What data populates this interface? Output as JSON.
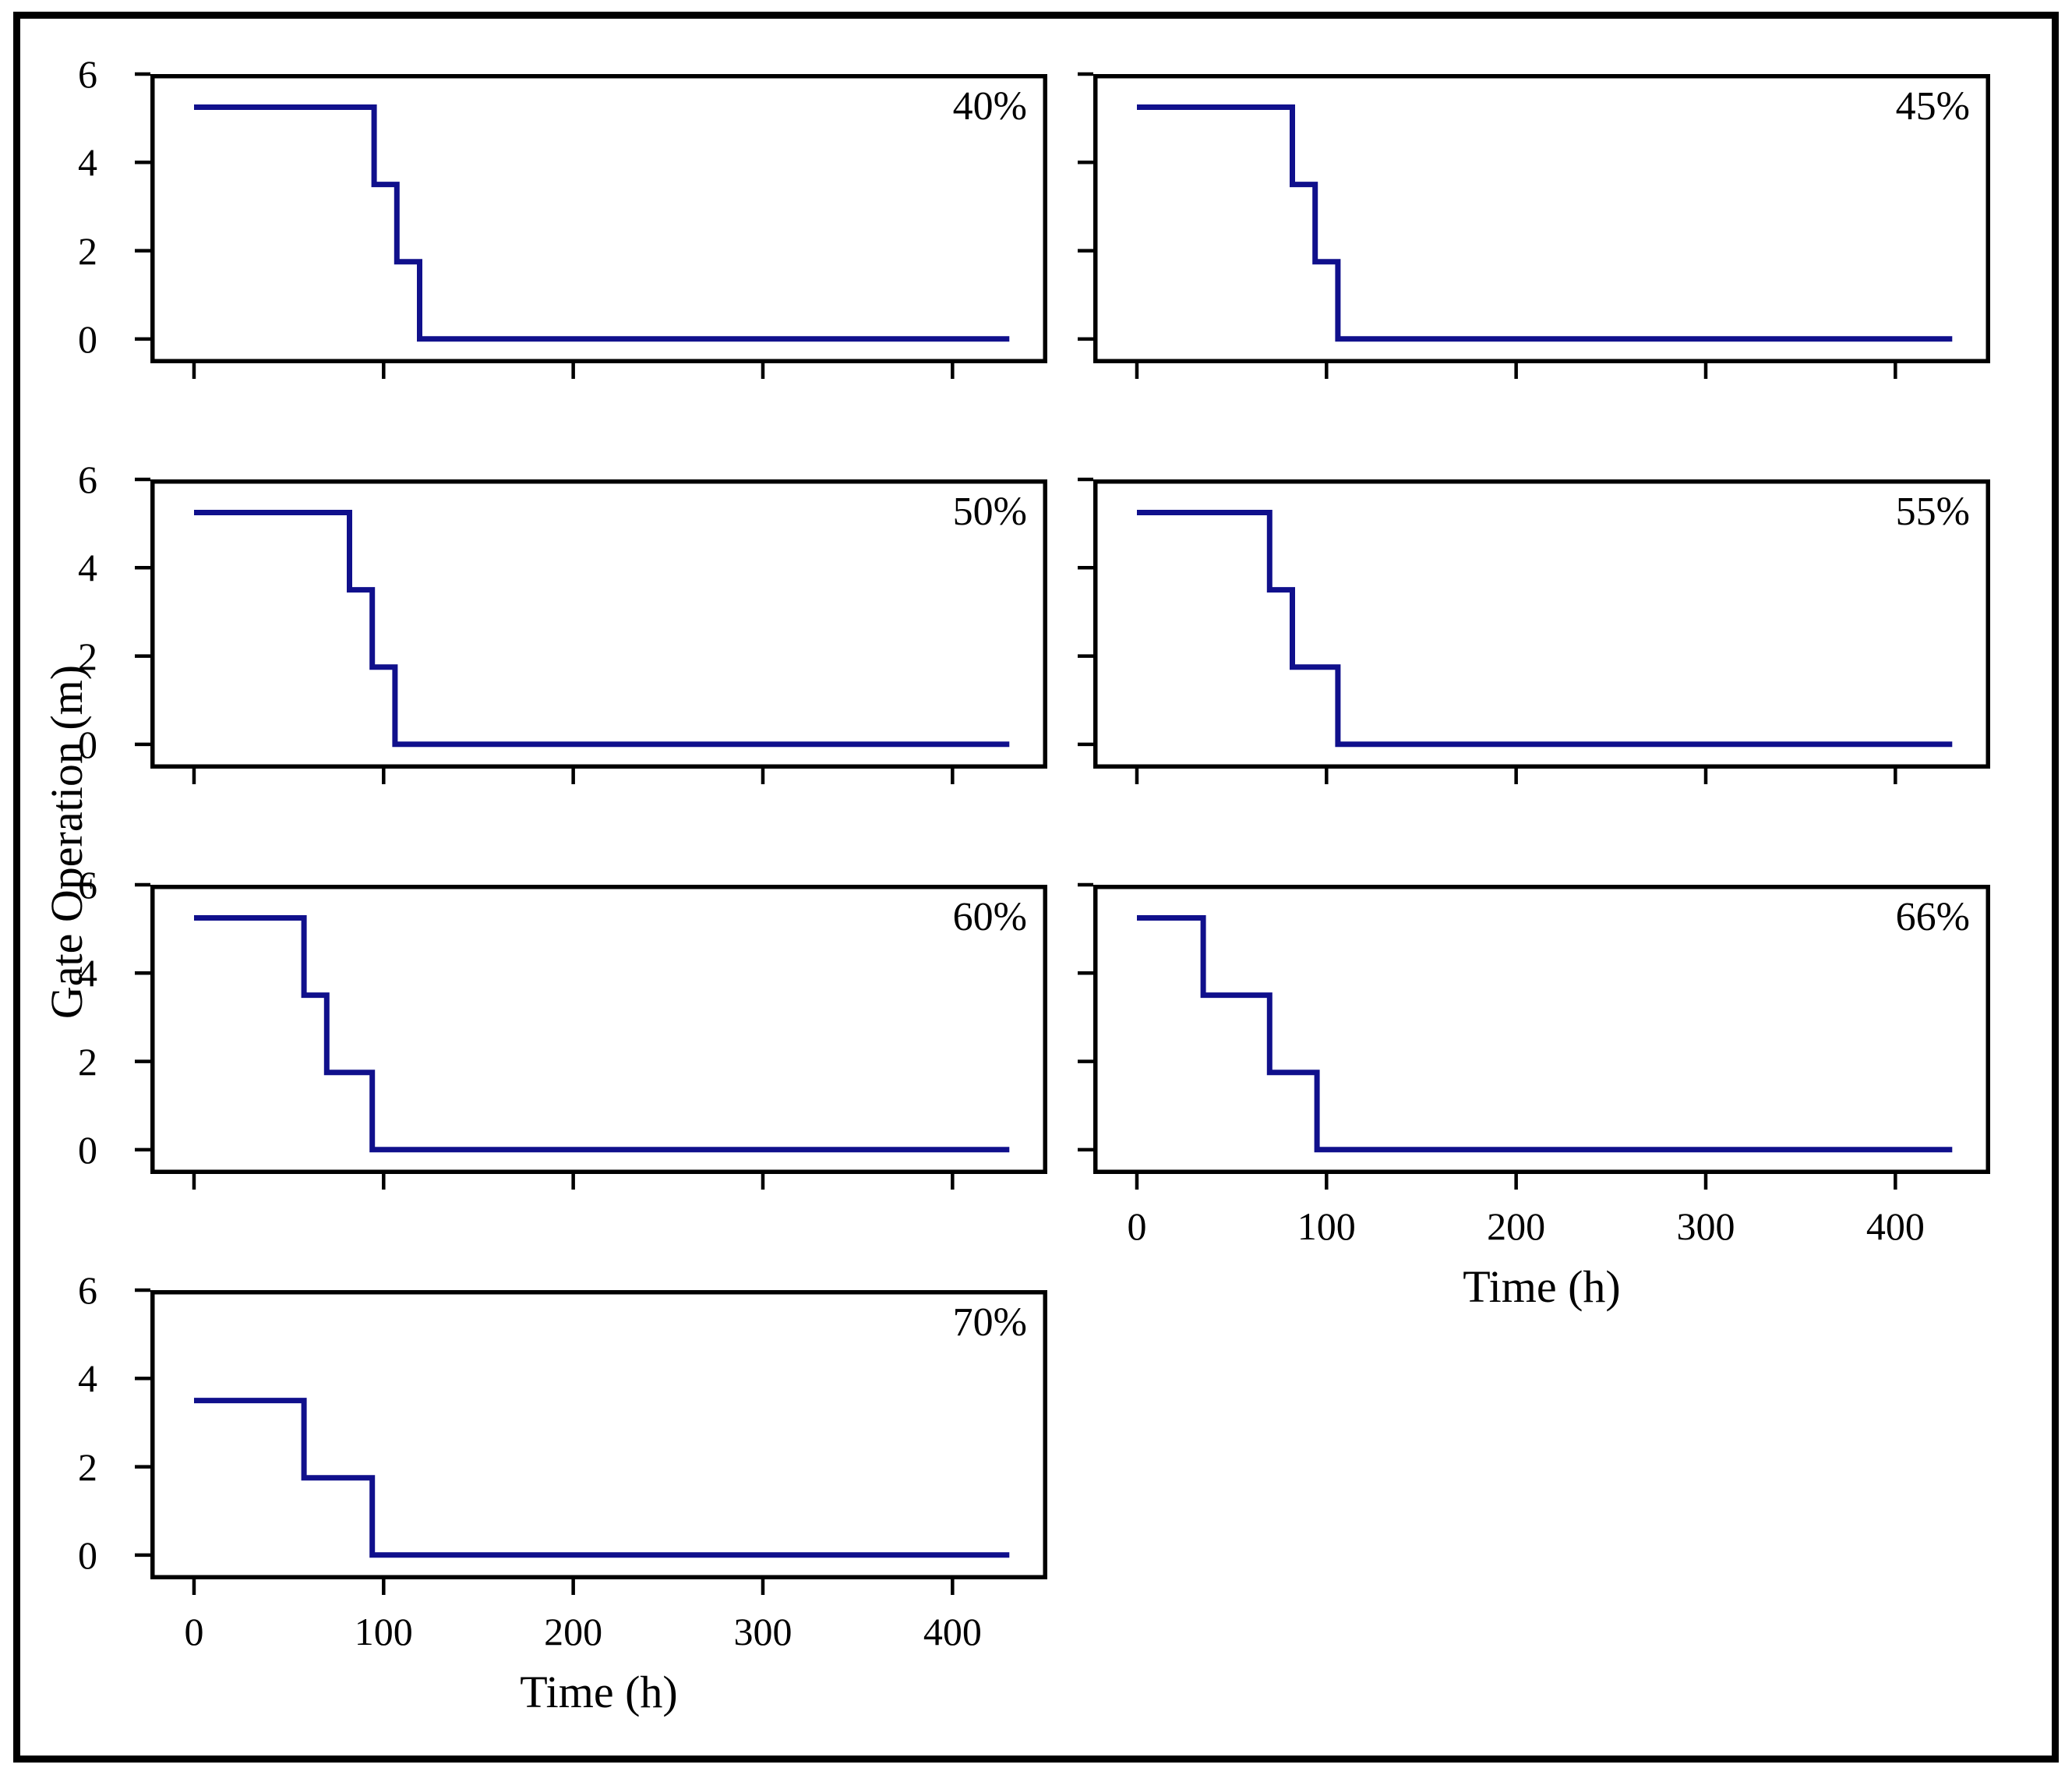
{
  "figure": {
    "background": "#ffffff",
    "frame_color": "#000000"
  },
  "chart_data": {
    "type": "line",
    "subtype": "step",
    "title": "",
    "xlabel": "Time (h)",
    "ylabel": "Gate Operation (m)",
    "line_color": "#10108C",
    "axis_color": "#000000",
    "grid": "off",
    "legend": "none",
    "xlim": [
      -23,
      450
    ],
    "ylim": [
      -0.55,
      6.0
    ],
    "xticks": {
      "values": [
        0,
        100,
        200,
        300,
        400
      ],
      "labels": [
        "0",
        "100",
        "200",
        "300",
        "400"
      ]
    },
    "yticks": {
      "values": [
        6,
        4,
        2,
        0
      ],
      "labels": [
        "6",
        "4",
        "2",
        "0"
      ]
    },
    "gate_levels_m": [
      5.25,
      3.5,
      1.75,
      0
    ],
    "panels": [
      {
        "label": "40%",
        "points": [
          [
            0,
            5.25
          ],
          [
            95,
            5.25
          ],
          [
            95,
            3.5
          ],
          [
            107,
            3.5
          ],
          [
            107,
            1.75
          ],
          [
            119,
            1.75
          ],
          [
            119,
            0
          ],
          [
            430,
            0
          ]
        ]
      },
      {
        "label": "45%",
        "points": [
          [
            0,
            5.25
          ],
          [
            82,
            5.25
          ],
          [
            82,
            3.5
          ],
          [
            94,
            3.5
          ],
          [
            94,
            1.75
          ],
          [
            106,
            1.75
          ],
          [
            106,
            0
          ],
          [
            430,
            0
          ]
        ]
      },
      {
        "label": "50%",
        "points": [
          [
            0,
            5.25
          ],
          [
            82,
            5.25
          ],
          [
            82,
            3.5
          ],
          [
            94,
            3.5
          ],
          [
            94,
            1.75
          ],
          [
            106,
            1.75
          ],
          [
            106,
            0
          ],
          [
            430,
            0
          ]
        ]
      },
      {
        "label": "55%",
        "points": [
          [
            0,
            5.25
          ],
          [
            70,
            5.25
          ],
          [
            70,
            3.5
          ],
          [
            82,
            3.5
          ],
          [
            82,
            1.75
          ],
          [
            106,
            1.75
          ],
          [
            106,
            0
          ],
          [
            430,
            0
          ]
        ]
      },
      {
        "label": "60%",
        "points": [
          [
            0,
            5.25
          ],
          [
            58,
            5.25
          ],
          [
            58,
            3.5
          ],
          [
            70,
            3.5
          ],
          [
            70,
            1.75
          ],
          [
            94,
            1.75
          ],
          [
            94,
            0
          ],
          [
            430,
            0
          ]
        ]
      },
      {
        "label": "66%",
        "points": [
          [
            0,
            5.25
          ],
          [
            35,
            5.25
          ],
          [
            35,
            3.5
          ],
          [
            70,
            3.5
          ],
          [
            70,
            1.75
          ],
          [
            95,
            1.75
          ],
          [
            95,
            0
          ],
          [
            430,
            0
          ]
        ]
      },
      {
        "label": "70%",
        "points": [
          [
            0,
            3.5
          ],
          [
            58,
            3.5
          ],
          [
            58,
            1.75
          ],
          [
            94,
            1.75
          ],
          [
            94,
            0
          ],
          [
            430,
            0
          ]
        ]
      }
    ]
  }
}
